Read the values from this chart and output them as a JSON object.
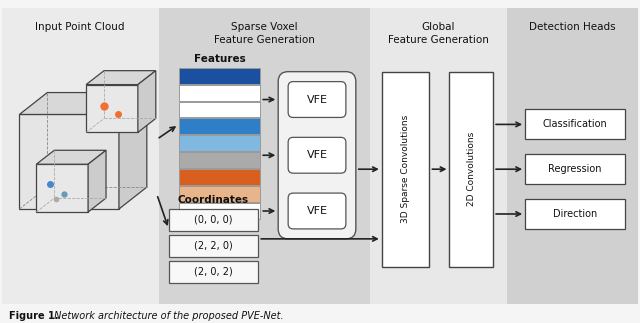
{
  "title_bold": "Figure 1.",
  "title_rest": " Network architecture of the proposed PVE-Net.",
  "section_titles": [
    "Input Point Cloud",
    "Sparse Voxel\nFeature Generation",
    "Global\nFeature Generation",
    "Detection Heads"
  ],
  "sec_bg_colors": [
    "#ebebeb",
    "#d4d4d4",
    "#e8e8e8",
    "#d0d0d0"
  ],
  "feature_colors_top": [
    "#1b4fa0",
    "#ffffff",
    "#ffffff",
    "#2b7cc4",
    "#7bb8e0",
    "#aaaaaa",
    "#d95f20",
    "#e8b48a",
    "#ffffff"
  ],
  "vfe_outer_bg": "#f2f2f2",
  "vfe_box_bg": "#ffffff",
  "conv_box_bg": "#ffffff",
  "head_box_bg": "#ffffff",
  "coord_box_bg": "#f8f8f8",
  "arrow_color": "#222222",
  "text_color": "#111111",
  "fig_bg": "#f5f5f5"
}
